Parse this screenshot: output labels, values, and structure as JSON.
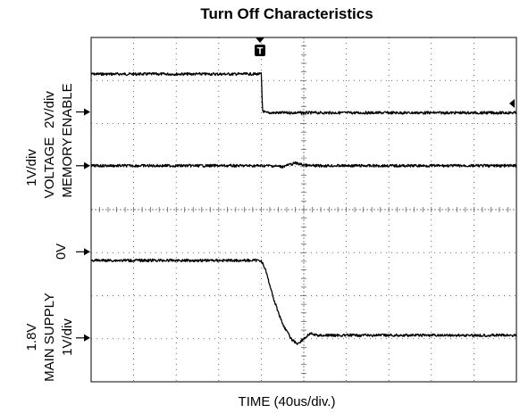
{
  "chart_data": {
    "type": "line",
    "title": "Turn Off Characteristics",
    "xlabel": "TIME (40us/div.)",
    "x_units": "div",
    "xlim": [
      0,
      10
    ],
    "ylim": [
      0,
      8
    ],
    "grid": true,
    "trigger_marker": "T",
    "channels": [
      {
        "name": "ENABLE",
        "label_lines": [
          "ENABLE",
          "2V/div"
        ],
        "ground_marker_y": 6.27,
        "x": [
          0,
          4.0,
          4.03,
          4.1,
          4.15,
          5,
          10
        ],
        "values": [
          7.15,
          7.15,
          6.3,
          6.25,
          6.25,
          6.25,
          6.25
        ]
      },
      {
        "name": "MEMORY VOLTAGE",
        "label_lines": [
          "MEMORY",
          "VOLTAGE",
          "1V/div"
        ],
        "ground_marker_y": 5.02,
        "x": [
          0,
          4.2,
          4.5,
          4.8,
          5.1,
          6,
          10
        ],
        "values": [
          5.02,
          5.02,
          5.0,
          5.08,
          5.02,
          5.02,
          5.02
        ]
      },
      {
        "name": "MAIN SUPPLY",
        "label_lines": [
          "0V",
          "1.8V",
          "MAIN SUPPLY",
          "1V/div"
        ],
        "ground_marker_y": 3.02,
        "level_marker_y": 1.02,
        "x": [
          0,
          4.0,
          4.1,
          4.3,
          4.5,
          4.7,
          4.85,
          5.0,
          5.15,
          5.3,
          6,
          10
        ],
        "values": [
          2.82,
          2.82,
          2.6,
          1.9,
          1.35,
          1.0,
          0.88,
          1.0,
          1.12,
          1.08,
          1.08,
          1.08
        ]
      }
    ]
  }
}
